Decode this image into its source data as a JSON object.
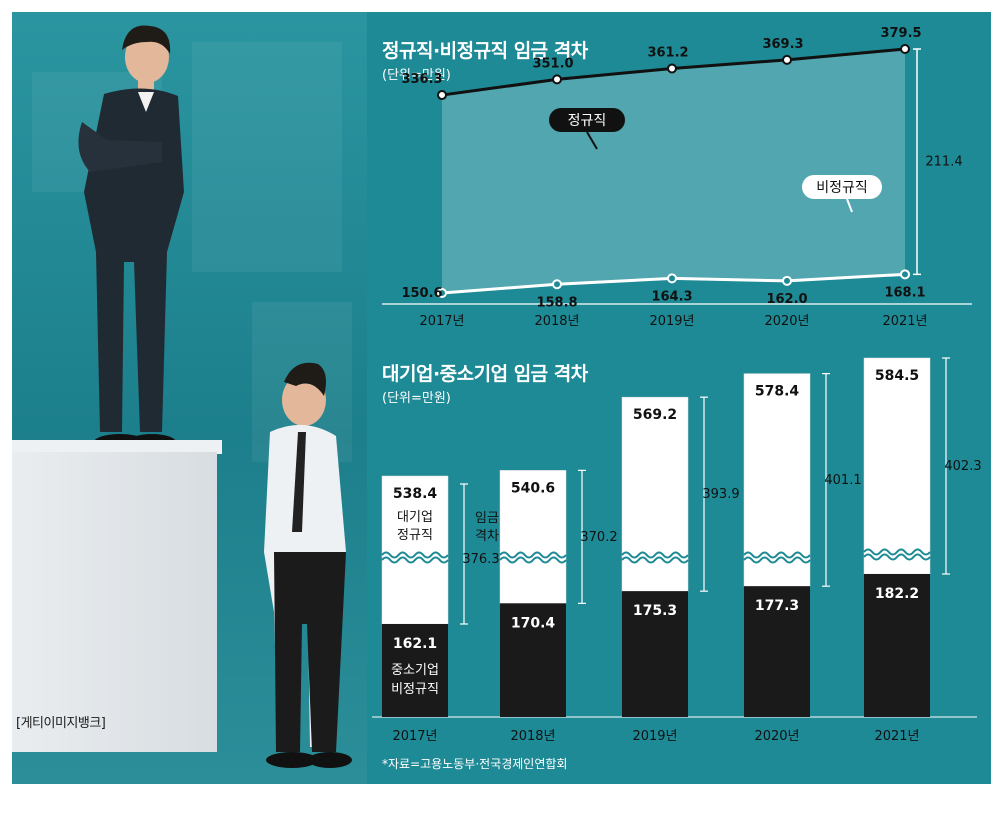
{
  "photo": {
    "credit": "[게티이미지뱅크]"
  },
  "charts": {
    "line": {
      "title": "정규직·비정규직 임금 격차",
      "unit": "(단위=만원)"
    },
    "bar": {
      "title": "대기업·중소기업 임금 격차",
      "unit": "(단위=만원)"
    }
  },
  "source_note": "*자료=고용노동부·전국경제인연합회",
  "chart_data": [
    {
      "type": "line",
      "title": "정규직·비정규직 임금 격차",
      "unit": "(단위=만원)",
      "x": [
        "2017년",
        "2018년",
        "2019년",
        "2020년",
        "2021년"
      ],
      "series": [
        {
          "name": "정규직",
          "values": [
            336.3,
            351.0,
            361.2,
            369.3,
            379.5
          ],
          "labels": [
            "336.3",
            "351.0",
            "361.2",
            "369.3",
            "379.5"
          ]
        },
        {
          "name": "비정규직",
          "values": [
            150.6,
            158.8,
            164.3,
            162.0,
            168.1
          ],
          "labels": [
            "150.6",
            "158.8",
            "164.3",
            "162.0",
            "168.1"
          ]
        }
      ],
      "gap_annotation": "211.4",
      "colors": {
        "line_regular": "#111111",
        "line_irregular": "#ffffff",
        "fill": "#5aaab4"
      }
    },
    {
      "type": "bar",
      "title": "대기업·중소기업 임금 격차",
      "unit": "(단위=만원)",
      "categories": [
        "2017년",
        "2018년",
        "2019년",
        "2020년",
        "2021년"
      ],
      "series": [
        {
          "name": "대기업 정규직",
          "values": [
            538.4,
            540.6,
            569.2,
            578.4,
            584.5
          ],
          "labels": [
            "538.4",
            "540.6",
            "569.2",
            "578.4",
            "584.5"
          ]
        },
        {
          "name": "중소기업 비정규직",
          "values": [
            162.1,
            170.4,
            175.3,
            177.3,
            182.2
          ],
          "labels": [
            "162.1",
            "170.4",
            "175.3",
            "177.3",
            "182.2"
          ]
        }
      ],
      "gap_labels": [
        "376.3",
        "370.2",
        "393.9",
        "401.1",
        "402.3"
      ],
      "gap_caption": [
        "임금",
        "격차"
      ],
      "inbar_labels": {
        "large_regular": [
          "대기업",
          "정규직"
        ],
        "sme_irregular": [
          "중소기업",
          "비정규직"
        ]
      },
      "colors": {
        "bar_large": "#ffffff",
        "bar_small": "#1a1a1a"
      }
    }
  ]
}
